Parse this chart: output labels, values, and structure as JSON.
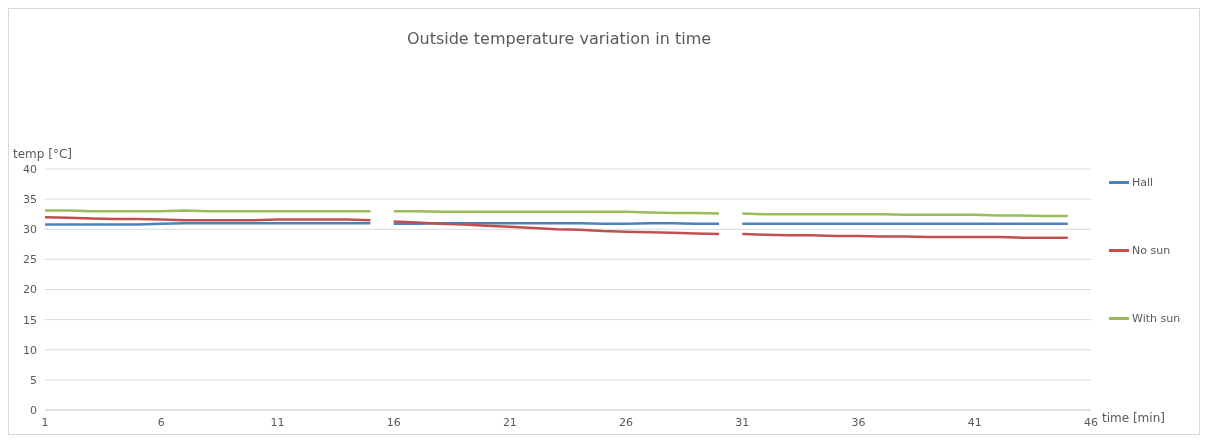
{
  "chart_data": {
    "type": "line",
    "title": "Outside temperature variation in time",
    "xlabel": "time [min]",
    "ylabel": "temp [°C]",
    "x": [
      1,
      2,
      3,
      4,
      5,
      6,
      7,
      8,
      9,
      10,
      11,
      12,
      13,
      14,
      15,
      15.5,
      16,
      17,
      18,
      19,
      20,
      21,
      22,
      23,
      24,
      25,
      26,
      27,
      28,
      29,
      30,
      30.5,
      31,
      32,
      33,
      34,
      35,
      36,
      37,
      38,
      39,
      40,
      41,
      42,
      43,
      44,
      45
    ],
    "series": [
      {
        "name": "Hall",
        "color": "#4f81bd",
        "values": [
          30.8,
          30.8,
          30.8,
          30.8,
          30.8,
          30.9,
          31.0,
          31.0,
          31.0,
          31.0,
          31.0,
          31.0,
          31.0,
          31.0,
          31.0,
          null,
          30.9,
          30.9,
          31.0,
          31.0,
          31.0,
          31.0,
          31.0,
          31.0,
          31.0,
          30.9,
          30.9,
          31.0,
          31.0,
          30.9,
          30.9,
          null,
          30.9,
          30.9,
          30.9,
          30.9,
          30.9,
          30.9,
          30.9,
          30.9,
          30.9,
          30.9,
          30.9,
          30.9,
          30.9,
          30.9,
          30.9
        ]
      },
      {
        "name": "No sun",
        "color": "#c0504d",
        "values": [
          32.0,
          31.9,
          31.8,
          31.7,
          31.7,
          31.6,
          31.5,
          31.5,
          31.5,
          31.5,
          31.6,
          31.6,
          31.6,
          31.6,
          31.5,
          null,
          31.3,
          31.1,
          30.9,
          30.8,
          30.6,
          30.4,
          30.2,
          30.0,
          29.9,
          29.7,
          29.6,
          29.5,
          29.4,
          29.3,
          29.2,
          null,
          29.2,
          29.1,
          29.0,
          29.0,
          28.9,
          28.9,
          28.8,
          28.8,
          28.7,
          28.7,
          28.7,
          28.7,
          28.6,
          28.6,
          28.6
        ]
      },
      {
        "name": "With sun",
        "color": "#9bbb59",
        "values": [
          33.1,
          33.1,
          33.0,
          33.0,
          33.0,
          33.0,
          33.1,
          33.0,
          33.0,
          33.0,
          33.0,
          33.0,
          33.0,
          33.0,
          33.0,
          null,
          33.0,
          33.0,
          32.9,
          32.9,
          32.9,
          32.9,
          32.9,
          32.9,
          32.9,
          32.9,
          32.9,
          32.8,
          32.7,
          32.7,
          32.6,
          null,
          32.6,
          32.5,
          32.5,
          32.5,
          32.5,
          32.5,
          32.5,
          32.4,
          32.4,
          32.4,
          32.4,
          32.3,
          32.3,
          32.2,
          32.2
        ]
      }
    ],
    "xlim": [
      1,
      46
    ],
    "xticks": [
      1,
      6,
      11,
      16,
      21,
      26,
      31,
      36,
      41,
      46
    ],
    "ylim": [
      0,
      40
    ],
    "yticks": [
      0,
      5,
      10,
      15,
      20,
      25,
      30,
      35,
      40
    ],
    "grid": "y",
    "legend": "right",
    "marker": "none",
    "line_style": "solid"
  }
}
